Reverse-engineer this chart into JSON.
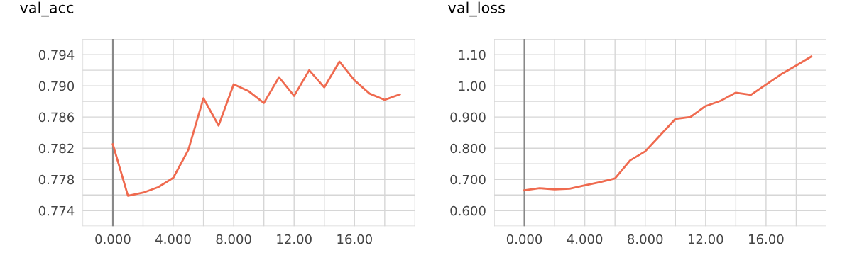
{
  "chart_data": [
    {
      "type": "line",
      "title": "val_acc",
      "x": [
        0,
        1,
        2,
        3,
        4,
        5,
        6,
        7,
        8,
        9,
        10,
        11,
        12,
        13,
        14,
        15,
        16,
        17,
        18,
        19
      ],
      "series": [
        {
          "color": "#ef6a4f",
          "values": [
            0.7825,
            0.7759,
            0.7763,
            0.777,
            0.7782,
            0.7818,
            0.7884,
            0.7849,
            0.7902,
            0.7893,
            0.7878,
            0.7911,
            0.7887,
            0.792,
            0.7898,
            0.7931,
            0.7907,
            0.789,
            0.7882,
            0.7889
          ]
        }
      ],
      "xlim": [
        -2,
        20
      ],
      "xticks": [
        {
          "value": -2,
          "label": null
        },
        {
          "value": 0,
          "label": "0.000"
        },
        {
          "value": 2,
          "label": null
        },
        {
          "value": 4,
          "label": "4.000"
        },
        {
          "value": 6,
          "label": null
        },
        {
          "value": 8,
          "label": "8.000"
        },
        {
          "value": 10,
          "label": null
        },
        {
          "value": 12,
          "label": "12.00"
        },
        {
          "value": 14,
          "label": null
        },
        {
          "value": 16,
          "label": "16.00"
        },
        {
          "value": 18,
          "label": null
        },
        {
          "value": 20,
          "label": null
        }
      ],
      "ylim": [
        0.772,
        0.796
      ],
      "yticks": [
        {
          "value": 0.772,
          "label": null
        },
        0.774,
        {
          "value": 0.776,
          "label": null
        },
        0.778,
        {
          "value": 0.78,
          "label": null
        },
        0.782,
        {
          "value": 0.784,
          "label": null
        },
        0.786,
        {
          "value": 0.788,
          "label": null
        },
        {
          "value": 0.79,
          "label": "0.790"
        },
        {
          "value": 0.792,
          "label": null
        },
        0.794,
        {
          "value": 0.796,
          "label": null
        }
      ],
      "grid": true,
      "line_style": "solid",
      "legend": false,
      "ref_lines": [
        {
          "axis": "x",
          "value": 0,
          "color": "#888888"
        }
      ]
    },
    {
      "type": "line",
      "title": "val_loss",
      "x": [
        0,
        1,
        2,
        3,
        4,
        5,
        6,
        7,
        8,
        9,
        10,
        11,
        12,
        13,
        14,
        15,
        16,
        17,
        18,
        19
      ],
      "series": [
        {
          "color": "#ef6a4f",
          "values": [
            0.665,
            0.672,
            0.668,
            0.67,
            0.681,
            0.691,
            0.703,
            0.761,
            0.79,
            0.842,
            0.894,
            0.9,
            0.935,
            0.952,
            0.978,
            0.971,
            1.004,
            1.037,
            1.065,
            1.094
          ]
        }
      ],
      "xlim": [
        -2,
        20
      ],
      "xticks": [
        {
          "value": -2,
          "label": null
        },
        {
          "value": 0,
          "label": "0.000"
        },
        {
          "value": 2,
          "label": null
        },
        {
          "value": 4,
          "label": "4.000"
        },
        {
          "value": 6,
          "label": null
        },
        {
          "value": 8,
          "label": "8.000"
        },
        {
          "value": 10,
          "label": null
        },
        {
          "value": 12,
          "label": "12.00"
        },
        {
          "value": 14,
          "label": null
        },
        {
          "value": 16,
          "label": "16.00"
        },
        {
          "value": 18,
          "label": null
        },
        {
          "value": 20,
          "label": null
        }
      ],
      "ylim": [
        0.55,
        1.15
      ],
      "yticks": [
        {
          "value": 0.55,
          "label": null
        },
        {
          "value": 0.6,
          "label": "0.600"
        },
        {
          "value": 0.65,
          "label": null
        },
        {
          "value": 0.7,
          "label": "0.700"
        },
        {
          "value": 0.75,
          "label": null
        },
        {
          "value": 0.8,
          "label": "0.800"
        },
        {
          "value": 0.85,
          "label": null
        },
        {
          "value": 0.9,
          "label": "0.900"
        },
        {
          "value": 0.95,
          "label": null
        },
        {
          "value": 1.0,
          "label": "1.00"
        },
        {
          "value": 1.05,
          "label": null
        },
        {
          "value": 1.1,
          "label": "1.10"
        },
        {
          "value": 1.15,
          "label": null
        }
      ],
      "grid": true,
      "line_style": "solid",
      "legend": false,
      "ref_lines": [
        {
          "axis": "x",
          "value": 0,
          "color": "#888888"
        }
      ]
    }
  ]
}
